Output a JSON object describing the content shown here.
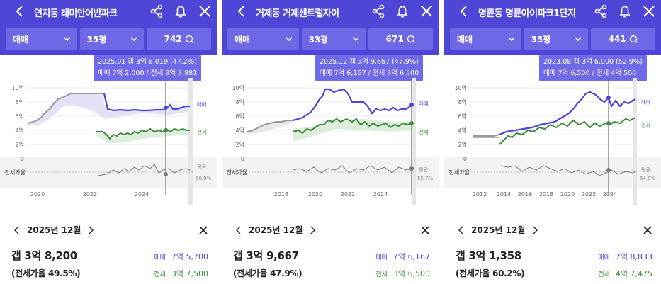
{
  "panels": [
    {
      "title": "연지동 래미안어반파크",
      "filters": {
        "type": "매매",
        "size": "35평",
        "count": "742"
      },
      "tooltip": {
        "line1": "2025.01  갭 3억 8,019 (47.2%)",
        "line2": "매매 7억 2,000 / 전세 3억 3,981"
      },
      "yticks": [
        "10억",
        "8억",
        "6억",
        "4억",
        "2억",
        "0"
      ],
      "xticks": [
        "2020",
        "2022",
        "2024"
      ],
      "legend": {
        "sale": "매매",
        "jeonse": "전세",
        "avg": "평균",
        "avg_val": "50.8%"
      },
      "ratio_label": "전세가율",
      "date": "2025년 12월",
      "gap": "갭 3억 8,200",
      "ratio": "(전세가율 49.5%)",
      "sale_key": "매매",
      "sale_val": "7억 5,700",
      "jeonse_key": "전세",
      "jeonse_val": "3억 7,500"
    },
    {
      "title": "거제동 거제센트럴자이",
      "filters": {
        "type": "매매",
        "size": "33평",
        "count": "671"
      },
      "tooltip": {
        "line1": "2025.12  갭 3억 9,667 (47.9%)",
        "line2": "매매 7억 6,167 / 전세 3억 6,500"
      },
      "yticks": [
        "10억",
        "8억",
        "6억",
        "4억",
        "2억",
        "0"
      ],
      "xticks": [
        "2018",
        "2020",
        "2022",
        "2024"
      ],
      "legend": {
        "sale": "매매",
        "jeonse": "전세",
        "avg": "평균",
        "avg_val": "55.7%"
      },
      "ratio_label": "전세가율",
      "date": "2025년 12월",
      "gap": "갭 3억 9,667",
      "ratio": "(전세가율 47.9%)",
      "sale_key": "매매",
      "sale_val": "7억 6,167",
      "jeonse_key": "전세",
      "jeonse_val": "3억 6,500"
    },
    {
      "title": "명륜동 명륜아이파크1단지",
      "filters": {
        "type": "매매",
        "size": "35평",
        "count": "441"
      },
      "tooltip": {
        "line1": "2023.08  갭 3억 6,000 (52.9%)",
        "line2": "매매 7억 6,500 / 전세 4억 500"
      },
      "yticks": [
        "10억",
        "8억",
        "6억",
        "4억",
        "2억",
        "0"
      ],
      "xticks": [
        "2012",
        "2014",
        "2016",
        "2018",
        "2020",
        "2022",
        "2024"
      ],
      "legend": {
        "sale": "매매",
        "jeonse": "전세",
        "avg": "평균",
        "avg_val": "64.8%"
      },
      "ratio_label": "전세가율",
      "date": "2025년 12월",
      "gap": "갭 3억 1,358",
      "ratio": "(전세가율 60.2%)",
      "sale_key": "매매",
      "sale_val": "7억 8,833",
      "jeonse_key": "전세",
      "jeonse_val": "4억 7,475"
    }
  ],
  "colors": {
    "header": "#4f46d8",
    "sale": "#4f46d8",
    "jeonse": "#3c8c3c",
    "gray": "#999999",
    "tooltip": "#6f6be8"
  },
  "icons": [
    "back-icon",
    "share-icon",
    "bell-icon",
    "close-icon",
    "chevron-down-icon",
    "search-icon",
    "prev-icon",
    "next-icon"
  ]
}
